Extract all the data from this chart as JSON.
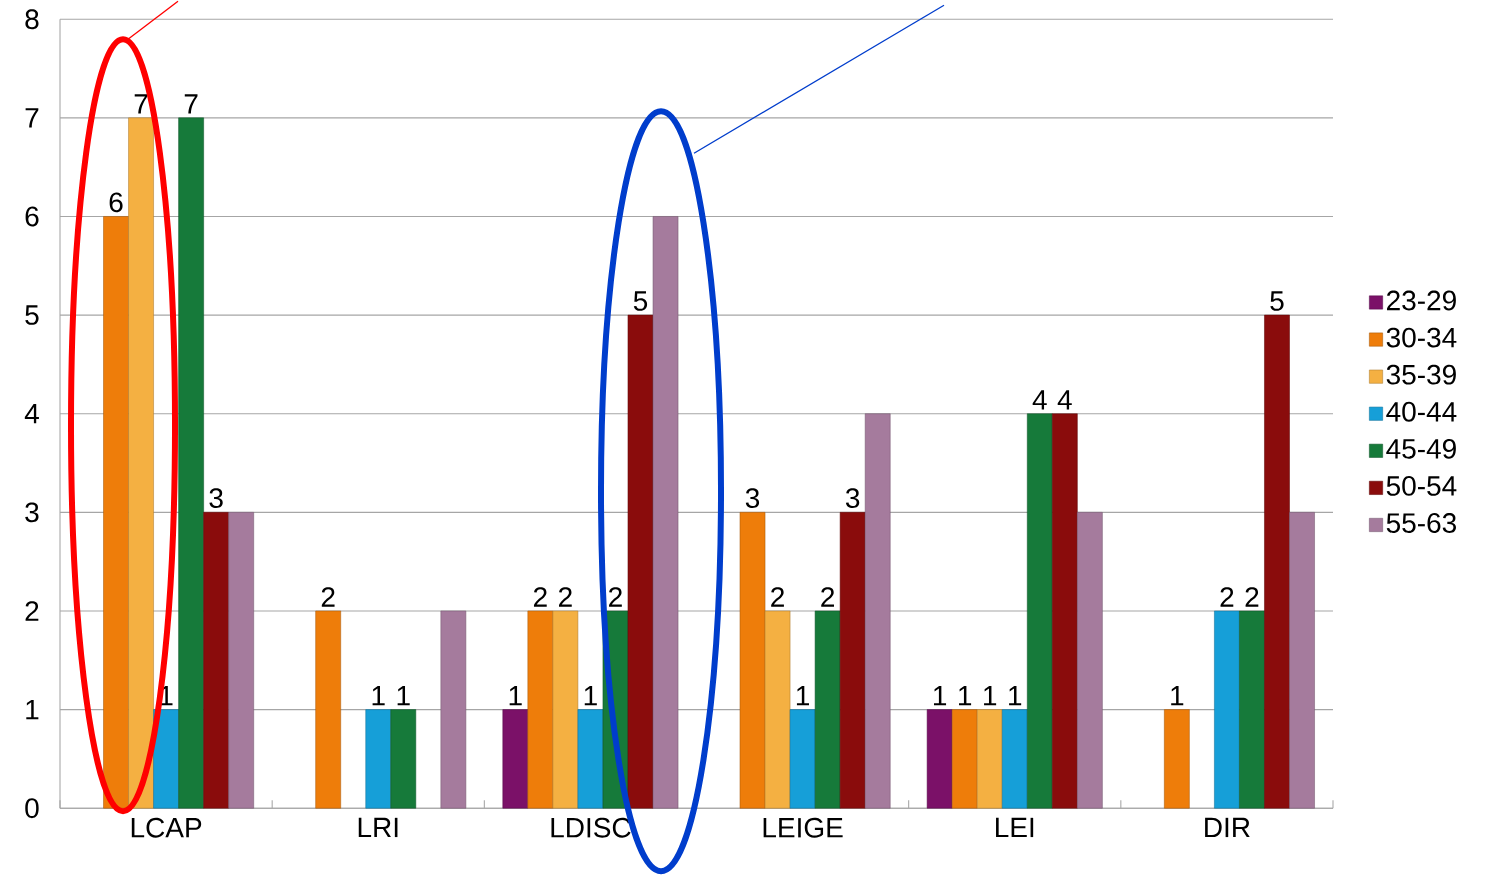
{
  "chart_data": {
    "type": "bar",
    "categories": [
      "LCAP",
      "LRI",
      "LDISC",
      "LEIGE",
      "LEI",
      "DIR"
    ],
    "series": [
      {
        "name": "23-29",
        "color": "#7b1168",
        "values": [
          null,
          null,
          1,
          null,
          1,
          null
        ],
        "value_labels": [
          null,
          null,
          "1",
          null,
          "1",
          null
        ]
      },
      {
        "name": "30-34",
        "color": "#ee7d0a",
        "values": [
          6,
          2,
          2,
          3,
          1,
          1
        ],
        "value_labels": [
          "6",
          "2",
          "2",
          "3",
          "1",
          "1"
        ]
      },
      {
        "name": "35-39",
        "color": "#f4b042",
        "values": [
          7,
          null,
          2,
          2,
          1,
          null
        ],
        "value_labels": [
          "7",
          null,
          "2",
          "2",
          "1",
          null
        ]
      },
      {
        "name": "40-44",
        "color": "#169fd8",
        "values": [
          1,
          1,
          1,
          1,
          1,
          2
        ],
        "value_labels": [
          "1",
          "1",
          "1",
          "1",
          "1",
          "2"
        ]
      },
      {
        "name": "45-49",
        "color": "#167a3a",
        "values": [
          7,
          1,
          2,
          2,
          4,
          2
        ],
        "value_labels": [
          "7",
          "1",
          "2",
          "2",
          "4",
          "2"
        ]
      },
      {
        "name": "50-54",
        "color": "#8a0c0c",
        "values": [
          3,
          null,
          5,
          3,
          4,
          5
        ],
        "value_labels": [
          "3",
          null,
          "5",
          "3",
          "4",
          "5"
        ]
      },
      {
        "name": "55-63",
        "color": "#a57b9d",
        "values": [
          3,
          2,
          6,
          4,
          3,
          3
        ],
        "value_labels": [
          null,
          null,
          null,
          null,
          null,
          null
        ]
      }
    ],
    "ylim": [
      0,
      8
    ],
    "yticks": [
      0,
      1,
      2,
      3,
      4,
      5,
      6,
      7,
      8
    ],
    "grid": "y",
    "legend": "right"
  }
}
